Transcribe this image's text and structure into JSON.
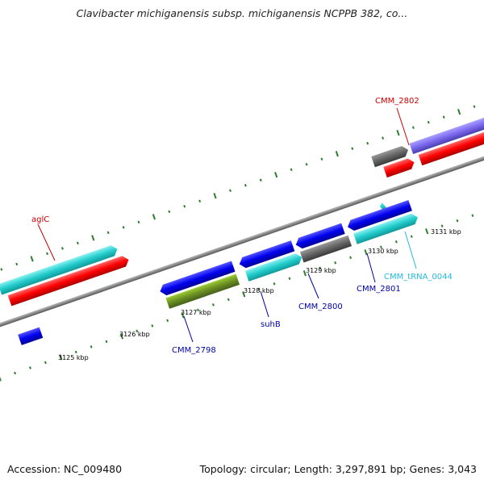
{
  "title": "Clavibacter michiganensis subsp. michiganensis NCPPB 382, co...",
  "footer": {
    "accession": "Accession: NC_009480",
    "summary": "Topology: circular; Length: 3,297,891 bp; Genes: 3,043"
  },
  "scale_labels": [
    "3125 kbp",
    "3126 kbp",
    "3127 kbp",
    "3128 kbp",
    "3129 kbp",
    "3130 kbp",
    "3131 kbp"
  ],
  "gene_labels": [
    {
      "text": "aglC",
      "color": "#cc0000"
    },
    {
      "text": "CMM_2802",
      "color": "#cc0000"
    },
    {
      "text": "CMM_2798",
      "color": "#0000aa"
    },
    {
      "text": "suhB",
      "color": "#0000aa"
    },
    {
      "text": "CMM_2800",
      "color": "#0000aa"
    },
    {
      "text": "CMM_2801",
      "color": "#0000aa"
    },
    {
      "text": "CMM_tRNA_0044",
      "color": "#22bbdd"
    }
  ],
  "colors": {
    "backbone": "#888888",
    "tick": "#2e7d2e",
    "cds_forward": "#ff0000",
    "cds_reverse": "#0000ee",
    "cds_cyan": "#22dddd",
    "cds_gray": "#666666",
    "cds_olive": "#6b8e23",
    "cds_purple": "#7b68ee",
    "trna": "#22bbdd"
  }
}
